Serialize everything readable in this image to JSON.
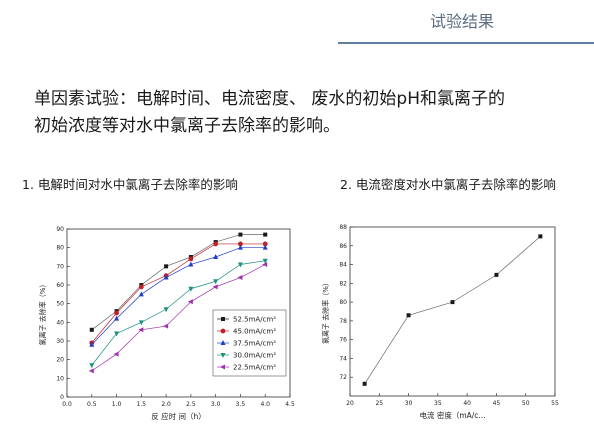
{
  "header": {
    "title": "试验结果"
  },
  "intro": {
    "line1": "单因素试验：电解时间、电流密度、 废水的初始pH和氯离子的",
    "line2": "初始浓度等对水中氯离子去除率的影响。"
  },
  "captions": {
    "left": "1. 电解时间对水中氯离子去除率的影响",
    "right": "2. 电流密度对水中氯离子去除率的影响"
  },
  "chart_data": [
    {
      "type": "line",
      "title": "",
      "xlabel": "反 应时 间（h）",
      "ylabel": "氯离子 去除率（%）",
      "xlim": [
        0.0,
        4.5
      ],
      "ylim": [
        0,
        90
      ],
      "xticks": [
        "0.0",
        "0.5",
        "1.0",
        "1.5",
        "2.0",
        "2.5",
        "3.0",
        "3.5",
        "4.0",
        "4.5"
      ],
      "yticks": [
        "0",
        "10",
        "20",
        "30",
        "40",
        "50",
        "60",
        "70",
        "80",
        "90"
      ],
      "grid": false,
      "legend": "bottom-right",
      "x": [
        0.5,
        1.0,
        1.5,
        2.0,
        2.5,
        3.0,
        3.5,
        4.0
      ],
      "series": [
        {
          "name": "52.5mA/cm²",
          "marker": "square",
          "color": "#1a1a1a",
          "values": [
            36,
            46,
            60,
            70,
            75,
            83,
            87,
            87
          ]
        },
        {
          "name": "45.0mA/cm²",
          "marker": "circle",
          "color": "#c0202a",
          "values": [
            29,
            45,
            59,
            65,
            74,
            82,
            82,
            82
          ]
        },
        {
          "name": "37.5mA/cm²",
          "marker": "triangle-up",
          "color": "#1f3ec8",
          "values": [
            28,
            42,
            55,
            64,
            71,
            75,
            80,
            80
          ]
        },
        {
          "name": "30.0mA/cm²",
          "marker": "triangle-down",
          "color": "#1f9080",
          "values": [
            17,
            34,
            40,
            47,
            58,
            62,
            71,
            73
          ]
        },
        {
          "name": "22.5mA/cm²",
          "marker": "triangle-left",
          "color": "#a030b0",
          "values": [
            14,
            23,
            36,
            38,
            51,
            59,
            64,
            71
          ]
        }
      ]
    },
    {
      "type": "line",
      "title": "",
      "xlabel": "电流 密度（mA/c...",
      "ylabel": "氯离子 去除率（%）",
      "xlim": [
        20,
        55
      ],
      "ylim": [
        70,
        88
      ],
      "xticks": [
        "20",
        "25",
        "30",
        "35",
        "40",
        "45",
        "50",
        "55"
      ],
      "yticks": [
        "72",
        "74",
        "76",
        "78",
        "80",
        "82",
        "84",
        "86",
        "88"
      ],
      "grid": false,
      "x": [
        22.5,
        30,
        37.5,
        45,
        52.5
      ],
      "series": [
        {
          "marker": "square",
          "color": "#1a1a1a",
          "values": [
            71.3,
            78.6,
            80.0,
            82.9,
            87.0
          ]
        }
      ]
    }
  ]
}
